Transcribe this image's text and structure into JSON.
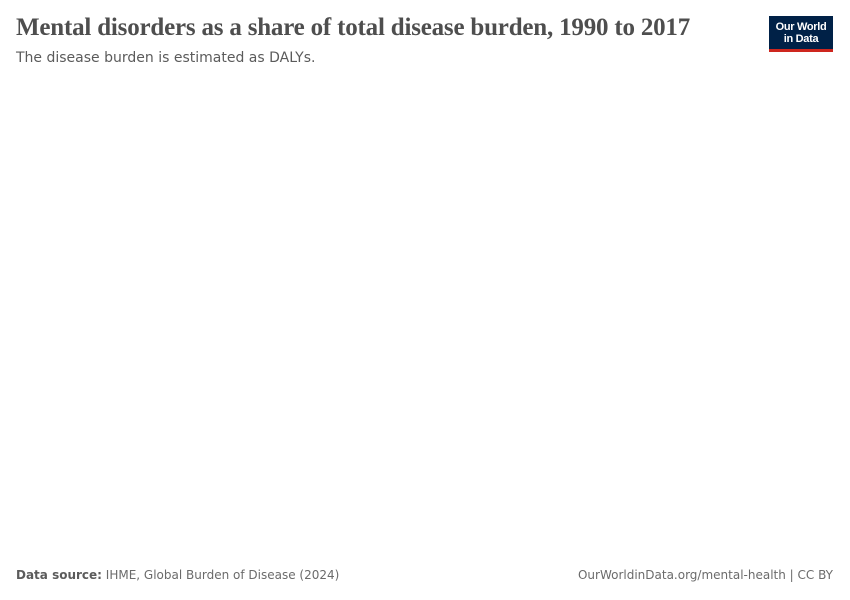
{
  "header": {
    "title": "Mental disorders as a share of total disease burden, 1990 to 2017",
    "subtitle": "The disease burden is estimated as DALYs.",
    "logo": [
      "Our World",
      "in Data"
    ]
  },
  "footer": {
    "source_label": "Data source:",
    "source": "IHME, Global Burden of Disease (2024)",
    "link": "OurWorldinData.org/mental-health | CC BY"
  }
}
